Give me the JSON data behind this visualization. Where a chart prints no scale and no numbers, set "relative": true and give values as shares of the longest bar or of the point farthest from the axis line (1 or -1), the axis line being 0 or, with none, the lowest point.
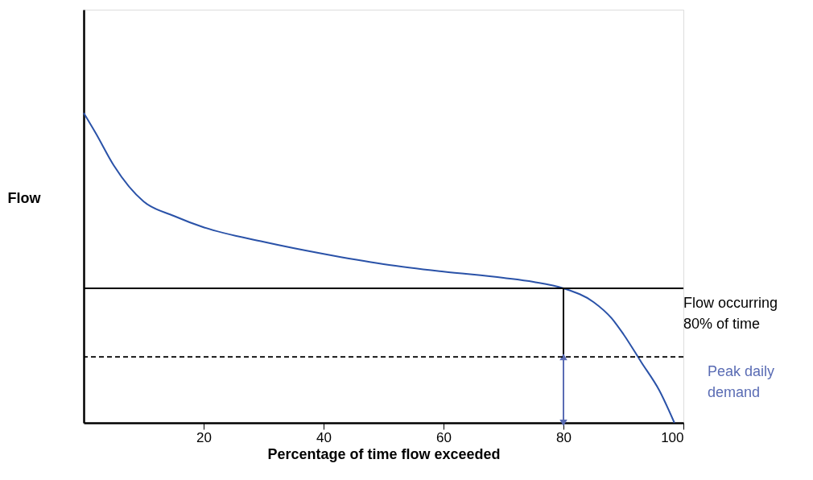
{
  "chart_data": {
    "type": "line",
    "xlabel": "Percentage of time flow exceeded",
    "ylabel": "Flow",
    "relative": true,
    "xlim": [
      0,
      100
    ],
    "xticks": [
      20,
      40,
      60,
      80,
      100
    ],
    "grid": false,
    "marker": "none",
    "line_style": "solid",
    "series": [
      {
        "color": "#2a52a8",
        "x": [
          0,
          2,
          5,
          10,
          15,
          20,
          30,
          40,
          50,
          60,
          70,
          75,
          80,
          85,
          88,
          90,
          93,
          96,
          98.5
        ],
        "values": [
          1.0,
          0.935,
          0.831,
          0.714,
          0.668,
          0.631,
          0.584,
          0.545,
          0.512,
          0.488,
          0.468,
          0.455,
          0.434,
          0.39,
          0.338,
          0.286,
          0.195,
          0.104,
          0.0
        ]
      },
      {
        "color": "#000000",
        "x": [
          80,
          80
        ],
        "values": [
          0.213,
          0.434
        ]
      },
      {
        "color": "#5a6cb4",
        "x": [
          80,
          80
        ],
        "values": [
          0.0,
          0.213
        ],
        "marker": "triangle"
      }
    ],
    "ref_lines": [
      {
        "axis": "y",
        "value": 0.434,
        "label": "Flow occurring 80% of time",
        "color": "#000000",
        "line_style": "solid"
      },
      {
        "axis": "y",
        "value": 0.213,
        "color": "#000000",
        "line_style": "dashed"
      }
    ],
    "annotations": [
      "Peak daily demand"
    ]
  }
}
